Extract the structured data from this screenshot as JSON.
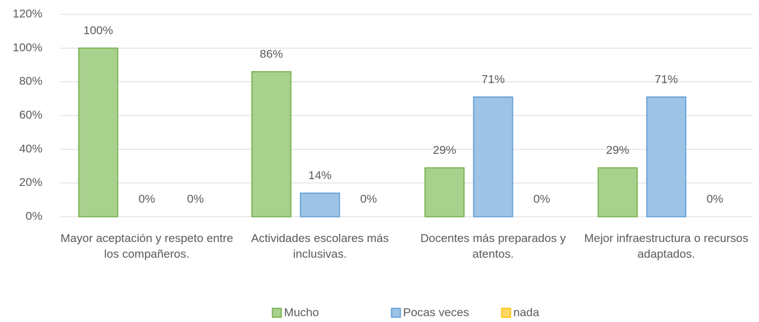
{
  "chart_data": {
    "type": "bar",
    "categories": [
      "Mayor aceptación y respeto entre los compañeros.",
      "Actividades escolares más inclusivas.",
      "Docentes más preparados y atentos.",
      "Mejor infraestructura o recursos adaptados."
    ],
    "series": [
      {
        "name": "Mucho",
        "color": "#a9d18e",
        "values": [
          100,
          86,
          29,
          29
        ],
        "value_labels": [
          "100%",
          "86%",
          "29%",
          "29%"
        ]
      },
      {
        "name": "Pocas veces",
        "color": "#9dc3e6",
        "values": [
          0,
          14,
          71,
          71
        ],
        "value_labels": [
          "0%",
          "14%",
          "71%",
          "71%"
        ]
      },
      {
        "name": "nada",
        "color": "#ffd966",
        "values": [
          0,
          0,
          0,
          0
        ],
        "value_labels": [
          "0%",
          "0%",
          "0%",
          "0%"
        ]
      }
    ],
    "ylim": [
      0,
      120
    ],
    "yticks": [
      {
        "value": 0,
        "label": "0%"
      },
      {
        "value": 20,
        "label": "20%"
      },
      {
        "value": 40,
        "label": "40%"
      },
      {
        "value": 60,
        "label": "60%"
      },
      {
        "value": 80,
        "label": "80%"
      },
      {
        "value": 100,
        "label": "100%"
      },
      {
        "value": 120,
        "label": "120%"
      }
    ],
    "grid": true,
    "legend": "bottom"
  }
}
